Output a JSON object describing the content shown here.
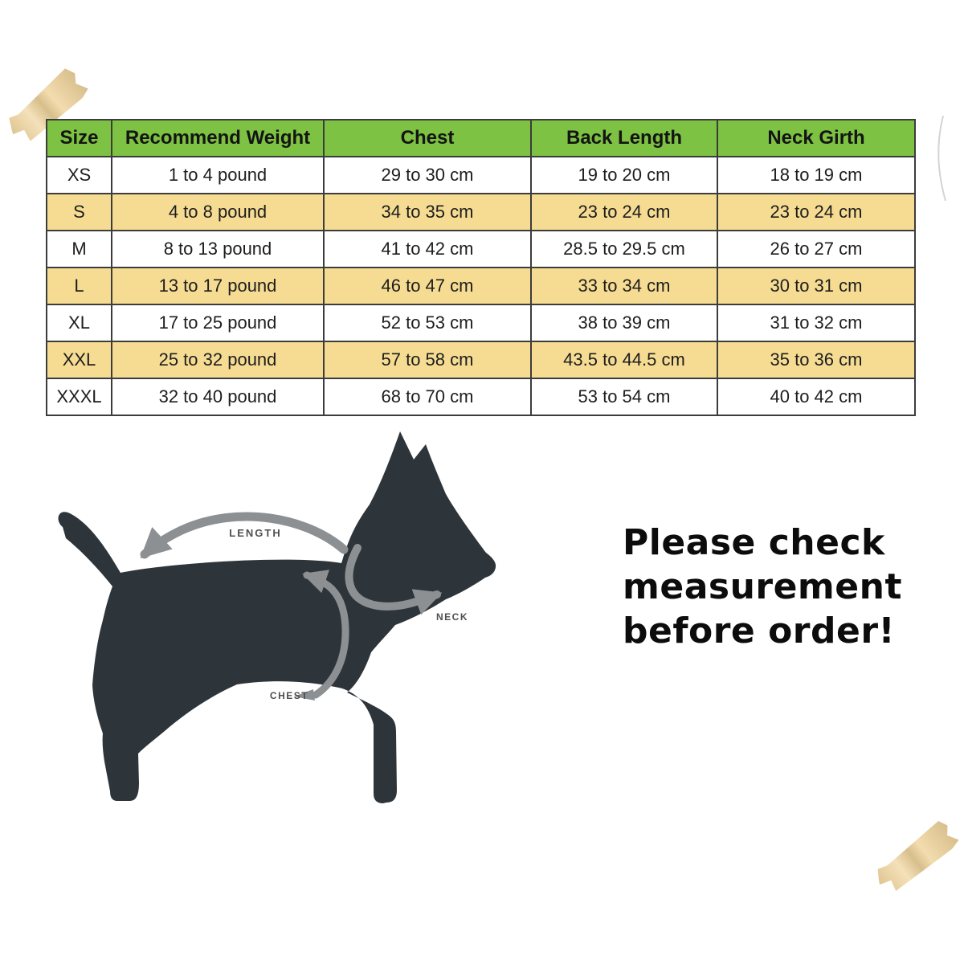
{
  "colors": {
    "background": "#ffffff",
    "header_green": "#7dc242",
    "row_yellow": "#f6dc93",
    "row_white": "#ffffff",
    "table_border": "#3c3c3c",
    "table_text": "#1d1d1d",
    "dog_silhouette": "#2e353a",
    "arrow_gray": "#8d9093",
    "diagram_label": "#4f4f4f",
    "note_text": "#0c0c0c",
    "tape_beige": "#f0d49c"
  },
  "size_chart": {
    "columns": [
      "Size",
      "Recommend Weight",
      "Chest",
      "Back Length",
      "Neck Girth"
    ],
    "rows": [
      [
        "XS",
        "1 to 4 pound",
        "29 to 30 cm",
        "19 to 20 cm",
        "18 to 19 cm"
      ],
      [
        "S",
        "4 to 8 pound",
        "34 to 35 cm",
        "23 to 24 cm",
        "23 to 24 cm"
      ],
      [
        "M",
        "8 to 13 pound",
        "41 to 42 cm",
        "28.5 to 29.5 cm",
        "26 to 27 cm"
      ],
      [
        "L",
        "13 to 17 pound",
        "46 to 47 cm",
        "33 to 34 cm",
        "30 to 31 cm"
      ],
      [
        "XL",
        "17 to 25 pound",
        "52 to 53 cm",
        "38 to 39 cm",
        "31 to 32 cm"
      ],
      [
        "XXL",
        "25 to 32 pound",
        "57 to 58 cm",
        "43.5 to 44.5 cm",
        "35 to 36 cm"
      ],
      [
        "XXXL",
        "32 to 40 pound",
        "68 to 70 cm",
        "53 to 54 cm",
        "40 to 42 cm"
      ]
    ]
  },
  "dog_diagram": {
    "labels": {
      "length": "LENGTH",
      "neck": "NECK",
      "chest": "CHEST"
    }
  },
  "note": {
    "lines": [
      "Please check",
      "measurement",
      "before order!"
    ]
  }
}
